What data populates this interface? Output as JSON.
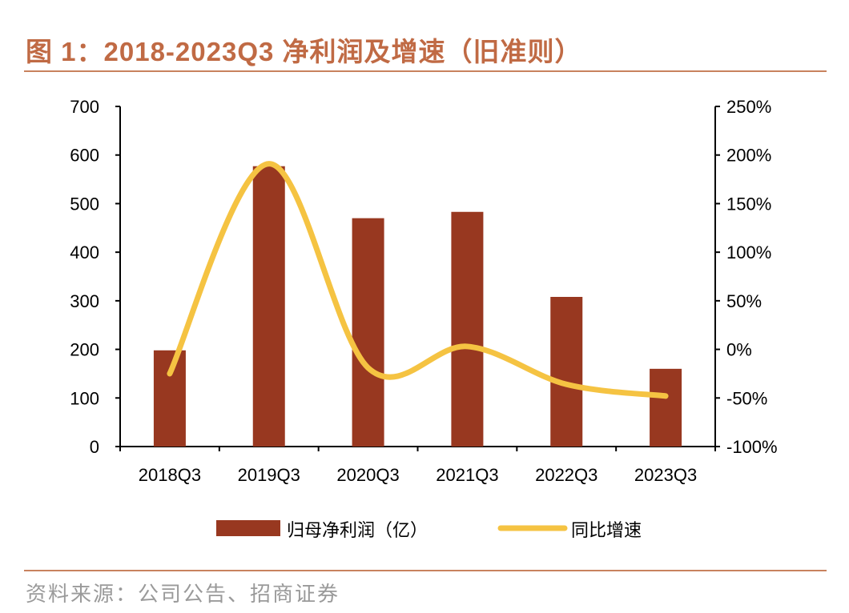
{
  "title": "图 1：2018-2023Q3 净利润及增速（旧准则）",
  "source": "资料来源：公司公告、招商证券",
  "chart_data": {
    "type": "bar+line",
    "categories": [
      "2018Q3",
      "2019Q3",
      "2020Q3",
      "2021Q3",
      "2022Q3",
      "2023Q3"
    ],
    "series": [
      {
        "name": "归母净利润（亿）",
        "type": "bar",
        "axis": "left",
        "color": "#983820",
        "values": [
          198,
          577,
          470,
          483,
          308,
          160
        ]
      },
      {
        "name": "同比增速",
        "type": "line",
        "axis": "right",
        "color": "#F5C342",
        "smooth": true,
        "values": [
          -25,
          191,
          -19,
          3,
          -36,
          -48
        ]
      }
    ],
    "left_axis": {
      "ylim": [
        0,
        700
      ],
      "ticks": [
        "0",
        "100",
        "200",
        "300",
        "400",
        "500",
        "600",
        "700"
      ]
    },
    "right_axis": {
      "ylim": [
        -100,
        250
      ],
      "unit": "%",
      "ticks": [
        "-100%",
        "-50%",
        "0%",
        "50%",
        "100%",
        "150%",
        "200%",
        "250%"
      ]
    },
    "grid": false,
    "legend": "bottom"
  }
}
